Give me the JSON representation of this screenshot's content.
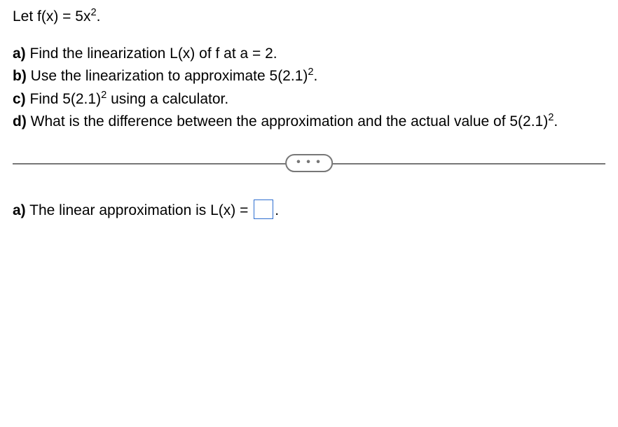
{
  "intro": "Let f(x) = 5x",
  "intro_sup": "2",
  "intro_tail": ".",
  "parts": {
    "a": {
      "label": "a)",
      "text": " Find the linearization L(x) of f at a = 2."
    },
    "b": {
      "label": "b)",
      "pre": " Use the linearization to approximate 5(2.1)",
      "sup": "2",
      "post": "."
    },
    "c": {
      "label": "c)",
      "pre": " Find 5(2.1)",
      "sup": "2",
      "post": " using a calculator."
    },
    "d": {
      "label": "d)",
      "pre": " What is the difference between the approximation and the actual value of 5(2.1)",
      "sup": "2",
      "post": "."
    }
  },
  "divider": {
    "dots": "• • •"
  },
  "answer": {
    "label": "a)",
    "pre": " The linear approximation is L(x) = ",
    "post": "."
  },
  "colors": {
    "text": "#000000",
    "divider": "#777777",
    "input_border": "#2f6fd0",
    "background": "#ffffff"
  },
  "fontsize_pt": 16
}
